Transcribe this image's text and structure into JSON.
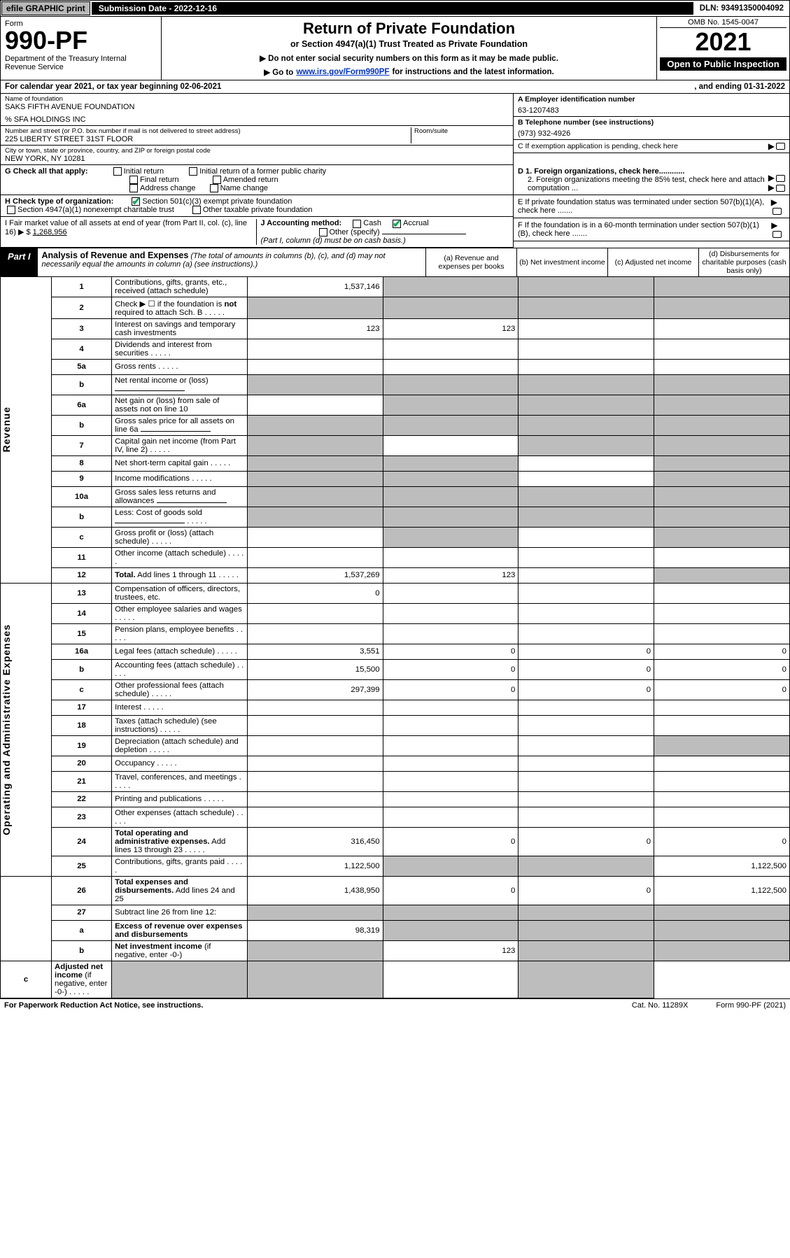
{
  "topbar": {
    "efile": "efile GRAPHIC print",
    "subdate": "Submission Date - 2022-12-16",
    "dln": "DLN: 93491350004092"
  },
  "header": {
    "form_word": "Form",
    "form_no": "990-PF",
    "dept": "Department of the Treasury\nInternal Revenue Service",
    "title": "Return of Private Foundation",
    "sub1": "or Section 4947(a)(1) Trust Treated as Private Foundation",
    "sub2a": "▶ Do not enter social security numbers on this form as it may be made public.",
    "sub2b_pre": "▶ Go to ",
    "sub2b_link": "www.irs.gov/Form990PF",
    "sub2b_post": " for instructions and the latest information.",
    "omb": "OMB No. 1545-0047",
    "year": "2021",
    "open": "Open to Public Inspection"
  },
  "calyear": {
    "left": "For calendar year 2021, or tax year beginning 02-06-2021",
    "right": ", and ending 01-31-2022"
  },
  "info": {
    "name_lbl": "Name of foundation",
    "name": "SAKS FIFTH AVENUE FOUNDATION",
    "careof": "% SFA HOLDINGS INC",
    "addr_lbl": "Number and street (or P.O. box number if mail is not delivered to street address)",
    "addr": "225 LIBERTY STREET 31ST FLOOR",
    "room_lbl": "Room/suite",
    "city_lbl": "City or town, state or province, country, and ZIP or foreign postal code",
    "city": "NEW YORK, NY  10281",
    "A_lbl": "A Employer identification number",
    "A_val": "63-1207483",
    "B_lbl": "B Telephone number (see instructions)",
    "B_val": "(973) 932-4926",
    "C_lbl": "C If exemption application is pending, check here",
    "D1_lbl": "D 1. Foreign organizations, check here............",
    "D2_lbl": "2. Foreign organizations meeting the 85% test, check here and attach computation ...",
    "E_lbl": "E  If private foundation status was terminated under section 507(b)(1)(A), check here .......",
    "F_lbl": "F  If the foundation is in a 60-month termination under section 507(b)(1)(B), check here .......",
    "G_lbl": "G Check all that apply:",
    "G_opts": [
      "Initial return",
      "Final return",
      "Address change",
      "Initial return of a former public charity",
      "Amended return",
      "Name change"
    ],
    "H_lbl": "H Check type of organization:",
    "H_opt1": "Section 501(c)(3) exempt private foundation",
    "H_opt2": "Section 4947(a)(1) nonexempt charitable trust",
    "H_opt3": "Other taxable private foundation",
    "I_lbl": "I Fair market value of all assets at end of year (from Part II, col. (c), line 16) ▶ $",
    "I_val": "1,268,956",
    "J_lbl": "J Accounting method:",
    "J_opts": [
      "Cash",
      "Accrual"
    ],
    "J_other": "Other (specify)",
    "J_note": "(Part I, column (d) must be on cash basis.)"
  },
  "part1": {
    "label": "Part I",
    "title": "Analysis of Revenue and Expenses",
    "title_note": " (The total of amounts in columns (b), (c), and (d) may not necessarily equal the amounts in column (a) (see instructions).)",
    "cols": {
      "a": "(a)  Revenue and expenses per books",
      "b": "(b)  Net investment income",
      "c": "(c)  Adjusted net income",
      "d": "(d)  Disbursements for charitable purposes (cash basis only)"
    }
  },
  "side_labels": {
    "rev": "Revenue",
    "exp": "Operating and Administrative Expenses"
  },
  "rows": [
    {
      "n": "1",
      "d": "Contributions, gifts, grants, etc., received (attach schedule)",
      "a": "1,537,146",
      "bG": true,
      "cG": true,
      "dG": true
    },
    {
      "n": "2",
      "d": "Check ▶ ☐ if the foundation is <b>not</b> required to attach Sch. B",
      "aG": true,
      "bG": true,
      "cG": true,
      "dG": true,
      "dots": true
    },
    {
      "n": "3",
      "d": "Interest on savings and temporary cash investments",
      "a": "123",
      "b": "123"
    },
    {
      "n": "4",
      "d": "Dividends and interest from securities",
      "dots": true
    },
    {
      "n": "5a",
      "d": "Gross rents",
      "dots": true
    },
    {
      "n": "b",
      "d": "Net rental income or (loss)",
      "inline": true,
      "aG": true,
      "bG": true,
      "cG": true,
      "dG": true
    },
    {
      "n": "6a",
      "d": "Net gain or (loss) from sale of assets not on line 10",
      "bG": true,
      "cG": true,
      "dG": true
    },
    {
      "n": "b",
      "d": "Gross sales price for all assets on line 6a",
      "inline": true,
      "aG": true,
      "bG": true,
      "cG": true,
      "dG": true
    },
    {
      "n": "7",
      "d": "Capital gain net income (from Part IV, line 2)",
      "dots": true,
      "aG": true,
      "cG": true,
      "dG": true
    },
    {
      "n": "8",
      "d": "Net short-term capital gain",
      "dots": true,
      "aG": true,
      "bG": true,
      "dG": true
    },
    {
      "n": "9",
      "d": "Income modifications",
      "dots": true,
      "aG": true,
      "bG": true,
      "dG": true
    },
    {
      "n": "10a",
      "d": "Gross sales less returns and allowances",
      "inline": true,
      "aG": true,
      "bG": true,
      "cG": true,
      "dG": true
    },
    {
      "n": "b",
      "d": "Less: Cost of goods sold",
      "dots": true,
      "inline": true,
      "aG": true,
      "bG": true,
      "cG": true,
      "dG": true
    },
    {
      "n": "c",
      "d": "Gross profit or (loss) (attach schedule)",
      "dots": true,
      "bG": true,
      "dG": true
    },
    {
      "n": "11",
      "d": "Other income (attach schedule)",
      "dots": true
    },
    {
      "n": "12",
      "d": "<b>Total.</b> Add lines 1 through 11",
      "dots": true,
      "a": "1,537,269",
      "b": "123",
      "dG": true
    },
    {
      "n": "13",
      "d": "Compensation of officers, directors, trustees, etc.",
      "a": "0"
    },
    {
      "n": "14",
      "d": "Other employee salaries and wages",
      "dots": true
    },
    {
      "n": "15",
      "d": "Pension plans, employee benefits",
      "dots": true
    },
    {
      "n": "16a",
      "d": "Legal fees (attach schedule)",
      "dots": true,
      "a": "3,551",
      "b": "0",
      "c": "0",
      "dd": "0"
    },
    {
      "n": "b",
      "d": "Accounting fees (attach schedule)",
      "dots": true,
      "a": "15,500",
      "b": "0",
      "c": "0",
      "dd": "0"
    },
    {
      "n": "c",
      "d": "Other professional fees (attach schedule)",
      "dots": true,
      "a": "297,399",
      "b": "0",
      "c": "0",
      "dd": "0"
    },
    {
      "n": "17",
      "d": "Interest",
      "dots": true
    },
    {
      "n": "18",
      "d": "Taxes (attach schedule) (see instructions)",
      "dots": true
    },
    {
      "n": "19",
      "d": "Depreciation (attach schedule) and depletion",
      "dots": true,
      "dG": true
    },
    {
      "n": "20",
      "d": "Occupancy",
      "dots": true
    },
    {
      "n": "21",
      "d": "Travel, conferences, and meetings",
      "dots": true
    },
    {
      "n": "22",
      "d": "Printing and publications",
      "dots": true
    },
    {
      "n": "23",
      "d": "Other expenses (attach schedule)",
      "dots": true
    },
    {
      "n": "24",
      "d": "<b>Total operating and administrative expenses.</b> Add lines 13 through 23",
      "dots": true,
      "a": "316,450",
      "b": "0",
      "c": "0",
      "dd": "0"
    },
    {
      "n": "25",
      "d": "Contributions, gifts, grants paid",
      "dots": true,
      "a": "1,122,500",
      "bG": true,
      "cG": true,
      "dd": "1,122,500"
    },
    {
      "n": "26",
      "d": "<b>Total expenses and disbursements.</b> Add lines 24 and 25",
      "a": "1,438,950",
      "b": "0",
      "c": "0",
      "dd": "1,122,500"
    },
    {
      "n": "27",
      "d": "Subtract line 26 from line 12:",
      "aG": true,
      "bG": true,
      "cG": true,
      "dG": true
    },
    {
      "n": "a",
      "d": "<b>Excess of revenue over expenses and disbursements</b>",
      "a": "98,319",
      "bG": true,
      "cG": true,
      "dG": true
    },
    {
      "n": "b",
      "d": "<b>Net investment income</b> (if negative, enter -0-)",
      "aG": true,
      "b": "123",
      "cG": true,
      "dG": true
    },
    {
      "n": "c",
      "d": "<b>Adjusted net income</b> (if negative, enter -0-)",
      "dots": true,
      "aG": true,
      "bG": true,
      "dG": true
    }
  ],
  "footer": {
    "left": "For Paperwork Reduction Act Notice, see instructions.",
    "mid": "Cat. No. 11289X",
    "right": "Form 990-PF (2021)"
  }
}
